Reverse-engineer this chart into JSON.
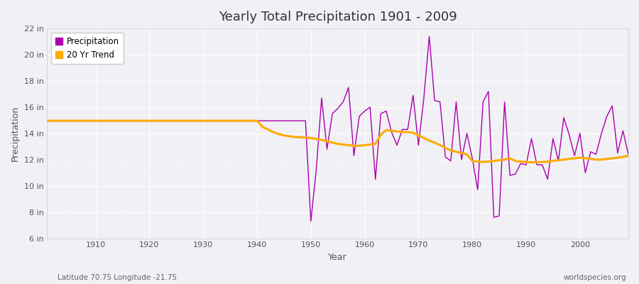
{
  "title": "Yearly Total Precipitation 1901 - 2009",
  "xlabel": "Year",
  "ylabel": "Precipitation",
  "lat_lon_label": "Latitude 70.75 Longitude -21.75",
  "credit": "worldspecies.org",
  "start_year": 1901,
  "end_year": 2009,
  "ylim": [
    6,
    22
  ],
  "yticks": [
    6,
    8,
    10,
    12,
    14,
    16,
    18,
    20,
    22
  ],
  "ytick_labels": [
    "6 in",
    "8 in",
    "10 in",
    "12 in",
    "14 in",
    "16 in",
    "18 in",
    "20 in",
    "22 in"
  ],
  "xticks": [
    1910,
    1920,
    1930,
    1940,
    1950,
    1960,
    1970,
    1980,
    1990,
    2000
  ],
  "precip_color": "#aa00aa",
  "trend_color": "#ffaa00",
  "bg_color": "#f0f0f5",
  "plot_bg_color": "#f0f0f5",
  "grid_color": "#ffffff",
  "precipitation": {
    "1901": 14.96,
    "1902": 14.96,
    "1903": 14.96,
    "1904": 14.96,
    "1905": 14.96,
    "1906": 14.96,
    "1907": 14.96,
    "1908": 14.96,
    "1909": 14.96,
    "1910": 14.96,
    "1911": 14.96,
    "1912": 14.96,
    "1913": 14.96,
    "1914": 14.96,
    "1915": 14.96,
    "1916": 14.96,
    "1917": 14.96,
    "1918": 14.96,
    "1919": 14.96,
    "1920": 14.96,
    "1921": 14.96,
    "1922": 14.96,
    "1923": 14.96,
    "1924": 14.96,
    "1925": 14.96,
    "1926": 14.96,
    "1927": 14.96,
    "1928": 14.96,
    "1929": 14.96,
    "1930": 14.96,
    "1931": 14.96,
    "1932": 14.96,
    "1933": 14.96,
    "1934": 14.96,
    "1935": 14.96,
    "1936": 14.96,
    "1937": 14.96,
    "1938": 14.96,
    "1939": 14.96,
    "1940": 14.96,
    "1941": 14.96,
    "1942": 14.96,
    "1943": 14.96,
    "1944": 14.96,
    "1945": 14.96,
    "1946": 14.96,
    "1947": 14.96,
    "1948": 14.96,
    "1949": 14.96,
    "1950": 7.3,
    "1951": 11.2,
    "1952": 16.7,
    "1953": 12.8,
    "1954": 15.5,
    "1955": 15.9,
    "1956": 16.4,
    "1957": 17.5,
    "1958": 12.3,
    "1959": 15.3,
    "1960": 15.7,
    "1961": 16.0,
    "1962": 10.5,
    "1963": 15.5,
    "1964": 15.7,
    "1965": 14.1,
    "1966": 13.1,
    "1967": 14.3,
    "1968": 14.3,
    "1969": 16.9,
    "1970": 13.1,
    "1971": 16.7,
    "1972": 21.4,
    "1973": 16.5,
    "1974": 16.4,
    "1975": 12.2,
    "1976": 11.9,
    "1977": 16.4,
    "1978": 12.0,
    "1979": 14.0,
    "1980": 12.1,
    "1981": 9.7,
    "1982": 16.4,
    "1983": 17.2,
    "1984": 7.6,
    "1985": 7.7,
    "1986": 16.4,
    "1987": 10.8,
    "1988": 10.9,
    "1989": 11.7,
    "1990": 11.6,
    "1991": 13.6,
    "1992": 11.6,
    "1993": 11.6,
    "1994": 10.5,
    "1995": 13.6,
    "1996": 11.9,
    "1997": 15.2,
    "1998": 13.9,
    "1999": 12.3,
    "2000": 14.0,
    "2001": 11.0,
    "2002": 12.6,
    "2003": 12.4,
    "2004": 14.0,
    "2005": 15.3,
    "2006": 16.1,
    "2007": 12.5,
    "2008": 14.2,
    "2009": 12.4
  },
  "trend": {
    "1901": 14.96,
    "1902": 14.96,
    "1903": 14.96,
    "1904": 14.96,
    "1905": 14.96,
    "1906": 14.96,
    "1907": 14.96,
    "1908": 14.96,
    "1909": 14.96,
    "1910": 14.96,
    "1911": 14.96,
    "1912": 14.96,
    "1913": 14.96,
    "1914": 14.96,
    "1915": 14.96,
    "1916": 14.96,
    "1917": 14.96,
    "1918": 14.96,
    "1919": 14.96,
    "1920": 14.96,
    "1921": 14.96,
    "1922": 14.96,
    "1923": 14.96,
    "1924": 14.96,
    "1925": 14.96,
    "1926": 14.96,
    "1927": 14.96,
    "1928": 14.96,
    "1929": 14.96,
    "1930": 14.96,
    "1931": 14.96,
    "1932": 14.96,
    "1933": 14.96,
    "1934": 14.96,
    "1935": 14.96,
    "1936": 14.96,
    "1937": 14.96,
    "1938": 14.96,
    "1939": 14.96,
    "1940": 14.96,
    "1941": 14.5,
    "1942": 14.3,
    "1943": 14.1,
    "1944": 13.95,
    "1945": 13.85,
    "1946": 13.78,
    "1947": 13.72,
    "1948": 13.7,
    "1949": 13.68,
    "1950": 13.65,
    "1951": 13.58,
    "1952": 13.5,
    "1953": 13.4,
    "1954": 13.3,
    "1955": 13.2,
    "1956": 13.15,
    "1957": 13.1,
    "1958": 13.05,
    "1959": 13.05,
    "1960": 13.1,
    "1961": 13.15,
    "1962": 13.2,
    "1963": 13.9,
    "1964": 14.25,
    "1965": 14.2,
    "1966": 14.15,
    "1967": 14.1,
    "1968": 14.1,
    "1969": 14.05,
    "1970": 13.85,
    "1971": 13.65,
    "1972": 13.45,
    "1973": 13.3,
    "1974": 13.1,
    "1975": 12.9,
    "1976": 12.7,
    "1977": 12.6,
    "1978": 12.5,
    "1979": 12.4,
    "1980": 11.9,
    "1981": 11.85,
    "1982": 11.82,
    "1983": 11.85,
    "1984": 11.9,
    "1985": 11.95,
    "1986": 12.0,
    "1987": 12.1,
    "1988": 11.9,
    "1989": 11.85,
    "1990": 11.82,
    "1991": 11.8,
    "1992": 11.8,
    "1993": 11.82,
    "1994": 11.85,
    "1995": 11.9,
    "1996": 11.95,
    "1997": 12.0,
    "1998": 12.05,
    "1999": 12.1,
    "2000": 12.15,
    "2001": 12.1,
    "2002": 12.05,
    "2003": 12.0,
    "2004": 12.0,
    "2005": 12.05,
    "2006": 12.1,
    "2007": 12.15,
    "2008": 12.2,
    "2009": 12.3
  }
}
